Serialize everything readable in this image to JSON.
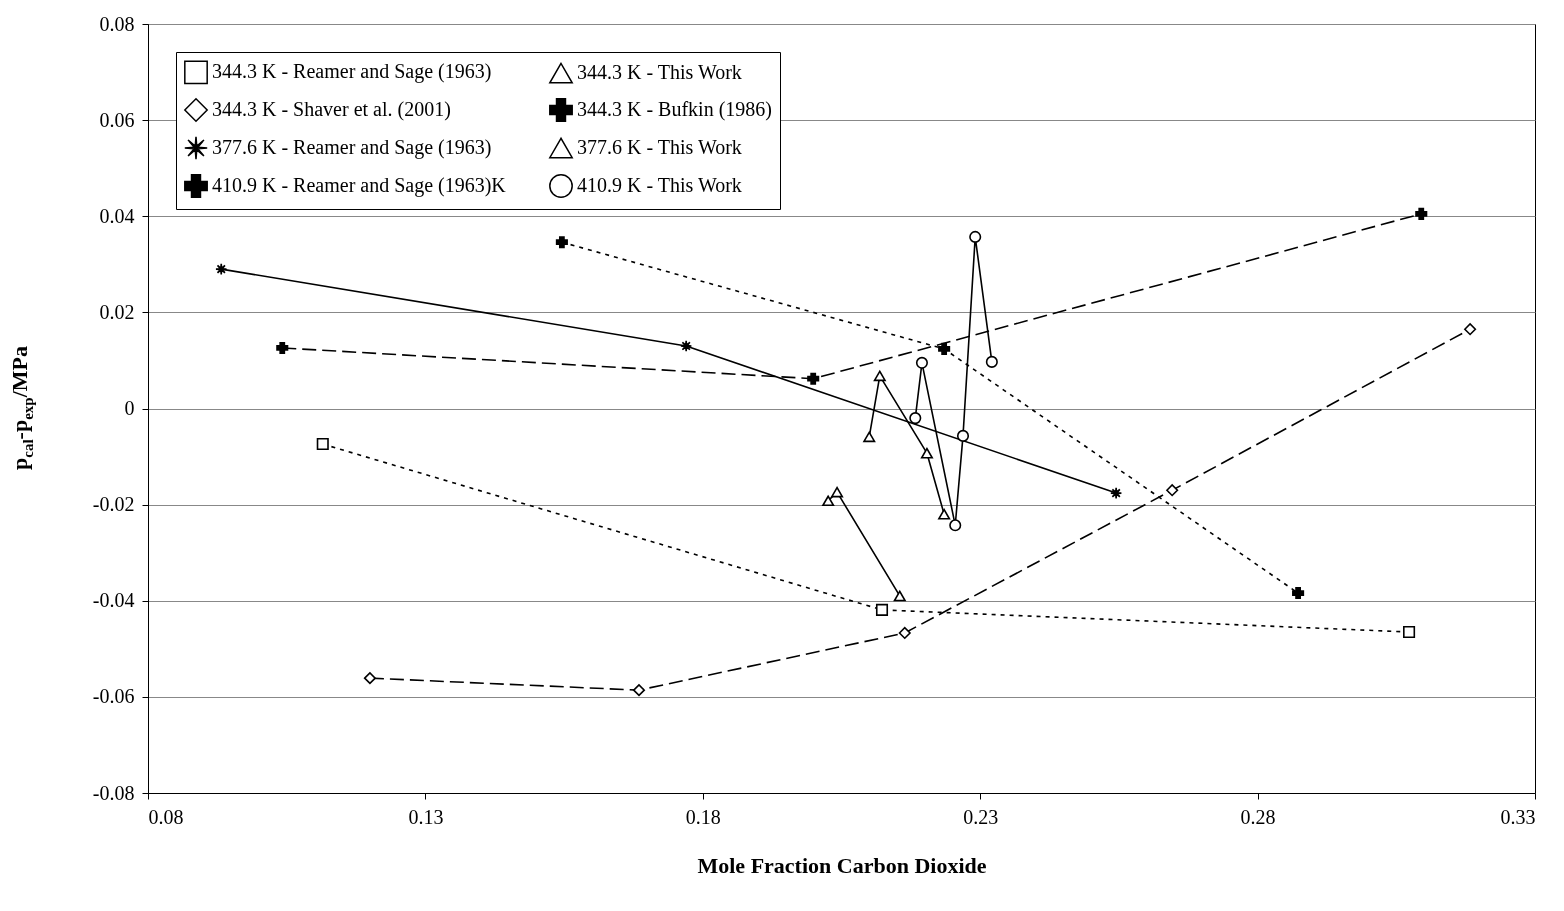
{
  "chart_data": {
    "type": "line",
    "xlabel": "Mole Fraction Carbon Dioxide",
    "ylabel": "p$_{cal}$-p$_{exp}$/MPa",
    "xlim": [
      0.08,
      0.33
    ],
    "xticks": [
      0.08,
      0.13,
      0.18,
      0.23,
      0.28,
      0.33
    ],
    "ylim": [
      -0.08,
      0.08
    ],
    "yticks": [
      -0.08,
      -0.06,
      -0.04,
      -0.02,
      0,
      0.02,
      0.04,
      0.06,
      0.08
    ],
    "grid": "y",
    "legend": "top left",
    "series": [
      {
        "name": "344.3 K - Reamer and Sage (1963)",
        "color": "#000000",
        "marker": "square",
        "line_style": "dotted",
        "x": [
          0.1115,
          0.2123,
          0.3073
        ],
        "values": [
          -0.0074,
          -0.0419,
          -0.0465
        ]
      },
      {
        "name": "344.3 K - Shaver et al. (2001)",
        "color": "#000000",
        "marker": "diamond",
        "line_style": "dashed",
        "x": [
          0.12,
          0.1685,
          0.2164,
          0.2646,
          0.3183
        ],
        "values": [
          -0.0561,
          -0.0586,
          -0.0467,
          -0.017,
          0.0165
        ]
      },
      {
        "name": "377.6 K - Reamer and Sage (1963)",
        "color": "#000000",
        "marker": "star",
        "line_style": "solid",
        "x": [
          0.0932,
          0.177,
          0.2545
        ],
        "values": [
          0.029,
          0.013,
          -0.0176
        ]
      },
      {
        "name": "410.9 K - Reamer and Sage (1963)K",
        "color": "#000000",
        "marker": "cross",
        "line_style": "dotted",
        "x": [
          0.1546,
          0.2235,
          0.2873
        ],
        "values": [
          0.0346,
          0.0124,
          -0.0384
        ]
      },
      {
        "name": "344.3 K - This Work",
        "color": "#000000",
        "marker": "triangle",
        "line_style": "solid",
        "x": [
          0.2026,
          0.2042,
          0.2155
        ],
        "values": [
          -0.0192,
          -0.0174,
          -0.039
        ]
      },
      {
        "name": "344.3 K - Bufkin (1986)",
        "color": "#000000",
        "marker": "cross",
        "line_style": "dashed",
        "x": [
          0.1042,
          0.1999,
          0.3095
        ],
        "values": [
          0.0126,
          0.0062,
          0.0405
        ]
      },
      {
        "name": "377.6 K - This Work",
        "color": "#000000",
        "marker": "triangle",
        "line_style": "solid",
        "x": [
          0.21,
          0.2119,
          0.2204,
          0.2235
        ],
        "values": [
          -0.0059,
          0.0068,
          -0.0093,
          -0.022
        ]
      },
      {
        "name": "410.9 K - This Work",
        "color": "#000000",
        "marker": "circle",
        "line_style": "solid",
        "x": [
          0.2183,
          0.2195,
          0.2255,
          0.2269,
          0.2291,
          0.2321
        ],
        "values": [
          -0.002,
          0.0095,
          -0.0243,
          -0.0057,
          0.0357,
          0.0097
        ]
      }
    ]
  }
}
